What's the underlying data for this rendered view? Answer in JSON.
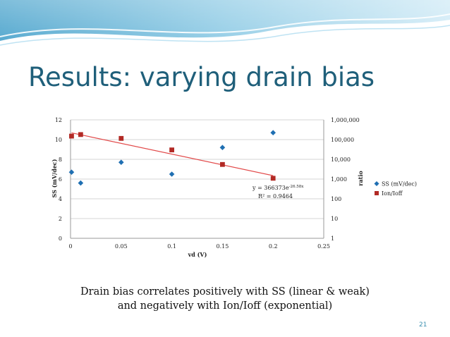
{
  "slide": {
    "title": "Results: varying drain bias",
    "caption_line1": "Drain bias correlates positively with SS (linear & weak)",
    "caption_line2": "and negatively with Ion/Ioff (exponential)",
    "page_number": "21"
  },
  "colors": {
    "title": "#1f5f7a",
    "band_dark": "#4aa3cc",
    "band_light": "#cfeaf6",
    "series_ss": "#1f6fb2",
    "series_ratio": "#b22a25",
    "trendline": "#e24a4a"
  },
  "chart_data": {
    "type": "scatter",
    "xlabel": "vd (V)",
    "ylabel": "SS (mV/dec)",
    "y2label": "ratio",
    "xlim": [
      0,
      0.25
    ],
    "ylim": [
      0,
      12
    ],
    "y2lim": [
      1,
      1000000
    ],
    "y2scale": "log",
    "x_ticks": [
      "0",
      "0.05",
      "0.1",
      "0.15",
      "0.2",
      "0.25"
    ],
    "y_ticks": [
      "0",
      "2",
      "4",
      "6",
      "8",
      "10",
      "12"
    ],
    "y2_ticks": [
      "1",
      "10",
      "100",
      "1,000",
      "10,000",
      "100,000",
      "1,000,000"
    ],
    "grid": true,
    "legend_position": "right",
    "series": [
      {
        "name": "SS (mV/dec)",
        "axis": "left",
        "marker": "diamond",
        "x": [
          0.001,
          0.01,
          0.05,
          0.1,
          0.15,
          0.2
        ],
        "y": [
          6.7,
          5.6,
          7.7,
          6.5,
          9.2,
          10.7
        ]
      },
      {
        "name": "Ion/Ioff",
        "axis": "right",
        "marker": "square",
        "x": [
          0.001,
          0.01,
          0.05,
          0.1,
          0.15,
          0.2
        ],
        "y": [
          150000,
          180000,
          115000,
          30000,
          5500,
          1100
        ]
      }
    ],
    "trendline": {
      "series": "Ion/Ioff",
      "type": "exponential",
      "x_range": [
        0.001,
        0.2
      ],
      "y_range": [
        220000,
        1500
      ],
      "equation_text": "y = 366373e",
      "equation_exp": "-26.58x",
      "r2_text": "R² = 0.9464"
    }
  }
}
